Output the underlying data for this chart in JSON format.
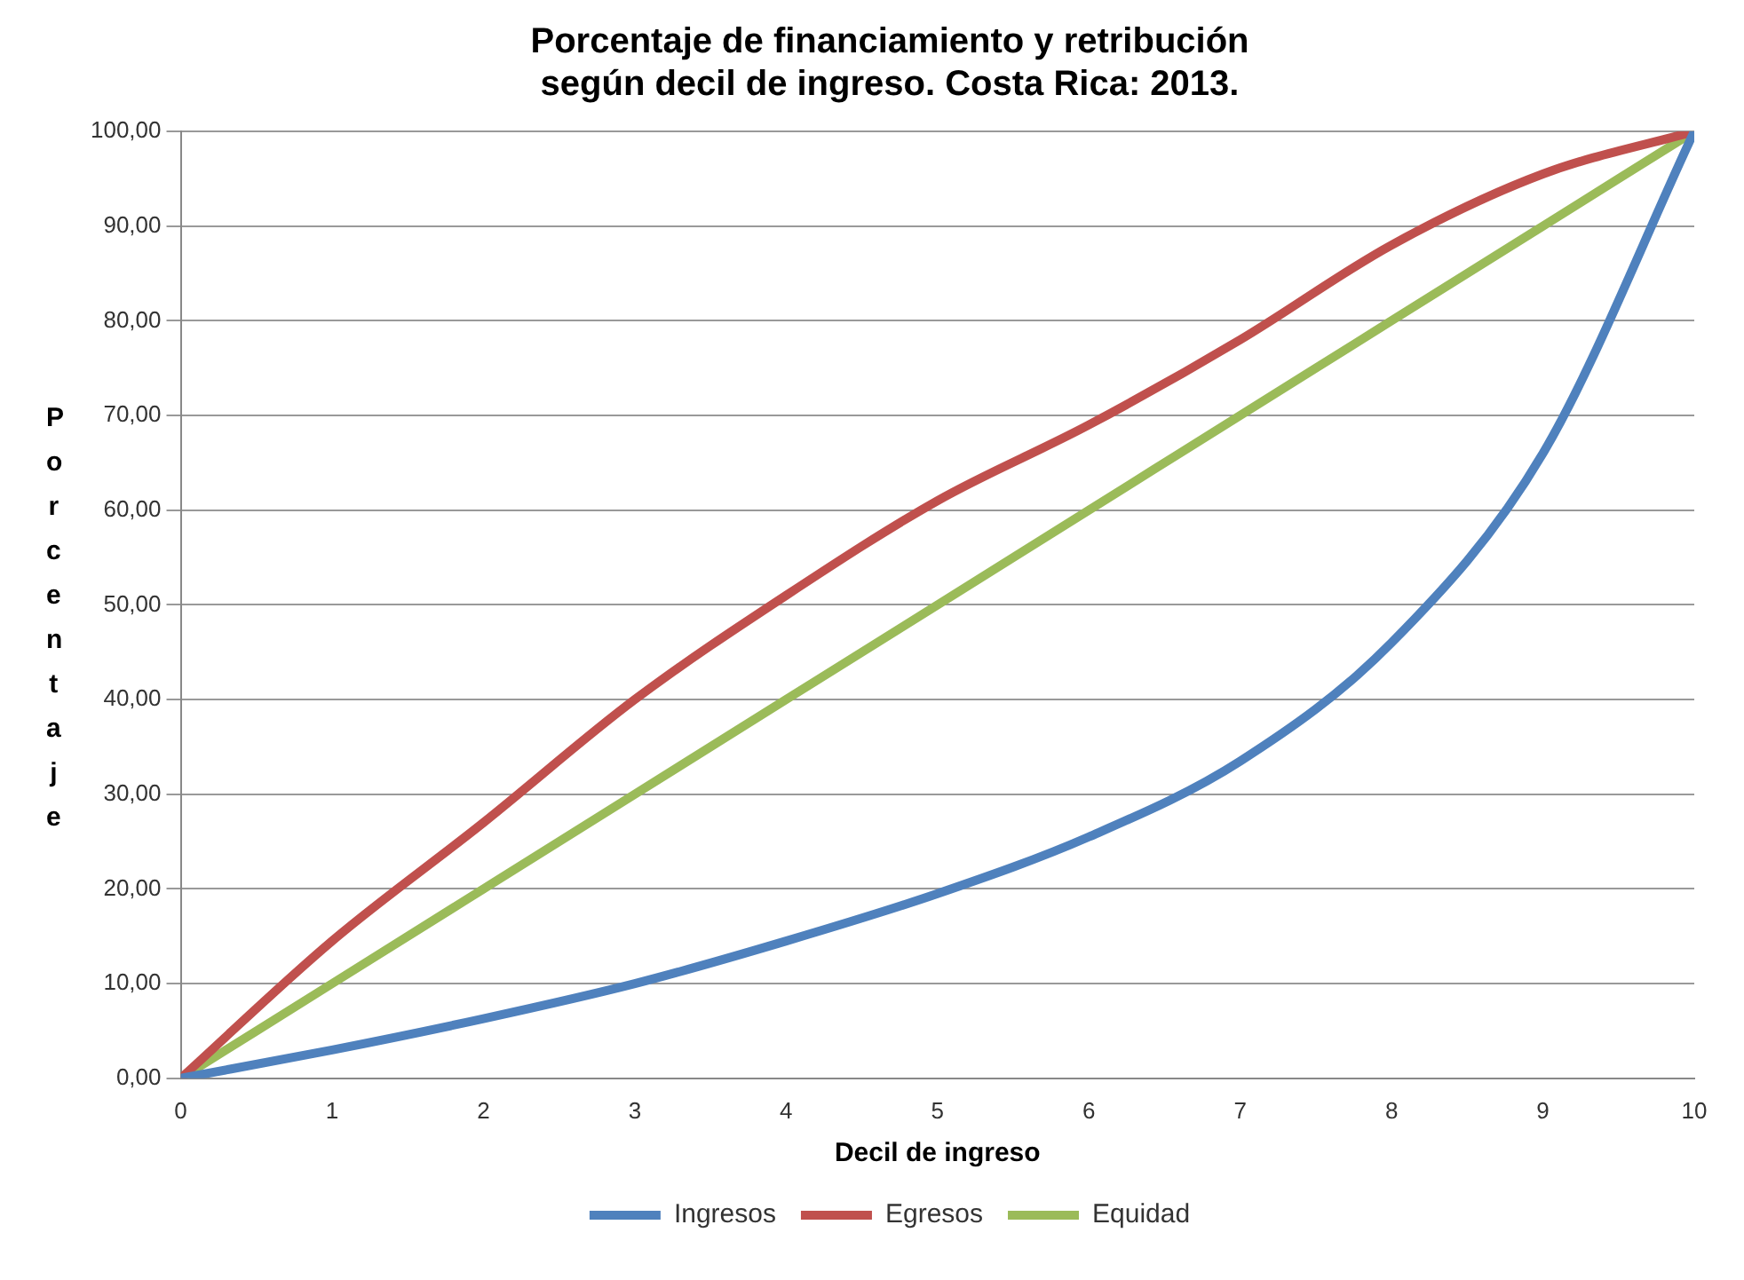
{
  "chart_data": {
    "type": "line",
    "title": "Porcentaje de financiamiento y retribución\nsegún decil de ingreso. Costa Rica: 2013.",
    "xlabel": "Decil de ingreso",
    "ylabel": "Porcentaje",
    "x": [
      0,
      1,
      2,
      3,
      4,
      5,
      6,
      7,
      8,
      9,
      10
    ],
    "series": [
      {
        "name": "Ingresos",
        "color": "#4f81bd",
        "values": [
          0,
          3,
          6.3,
          10,
          14.5,
          19.5,
          25.5,
          33.5,
          46,
          66,
          100
        ]
      },
      {
        "name": "Egresos",
        "color": "#c0504d",
        "values": [
          0,
          14.5,
          27,
          40,
          51,
          61,
          69,
          78,
          88,
          95.5,
          100
        ]
      },
      {
        "name": "Equidad",
        "color": "#9bbb59",
        "values": [
          0,
          10,
          20,
          30,
          40,
          50,
          60,
          70,
          80,
          90,
          100
        ]
      }
    ],
    "xlim": [
      0,
      10
    ],
    "xticks": [
      0,
      1,
      2,
      3,
      4,
      5,
      6,
      7,
      8,
      9,
      10
    ],
    "ylim": [
      0,
      100
    ],
    "yticks": [
      {
        "value": 0,
        "label": "0,00"
      },
      {
        "value": 10,
        "label": "10,00"
      },
      {
        "value": 20,
        "label": "20,00"
      },
      {
        "value": 30,
        "label": "30,00"
      },
      {
        "value": 40,
        "label": "40,00"
      },
      {
        "value": 50,
        "label": "50,00"
      },
      {
        "value": 60,
        "label": "60,00"
      },
      {
        "value": 70,
        "label": "70,00"
      },
      {
        "value": 80,
        "label": "80,00"
      },
      {
        "value": 90,
        "label": "90,00"
      },
      {
        "value": 100,
        "label": "100,00"
      }
    ],
    "grid": "y",
    "legend": "bottom",
    "marker": "none",
    "line_style": "solid"
  }
}
